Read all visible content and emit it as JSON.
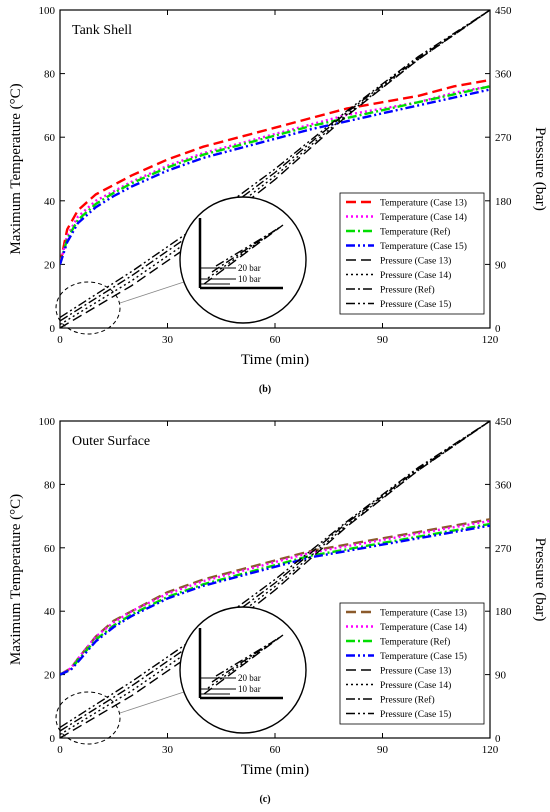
{
  "chart_data": [
    {
      "type": "line",
      "panel_title": "Tank Shell",
      "caption": "(b)",
      "xlabel": "Time (min)",
      "ylabel": "Maximum Temperature (°C)",
      "y2label": "Pressure (bar)",
      "xlim": [
        0,
        120
      ],
      "ylim": [
        0,
        100
      ],
      "y2lim": [
        0,
        450
      ],
      "xticks": [
        "0",
        "30",
        "60",
        "90",
        "120"
      ],
      "yticks": [
        "0",
        "20",
        "40",
        "60",
        "80",
        "100"
      ],
      "y2ticks": [
        "0",
        "90",
        "180",
        "270",
        "360",
        "450"
      ],
      "grid": false,
      "legend_position": "bottom-right",
      "inset_labels": [
        "20 bar",
        "10 bar"
      ],
      "series": [
        {
          "name": "Temperature (Case 13)",
          "axis": "left",
          "color": "#ff0000",
          "dash": "dash",
          "x": [
            0,
            2,
            5,
            10,
            15,
            20,
            30,
            40,
            50,
            60,
            70,
            80,
            90,
            100,
            110,
            120
          ],
          "y": [
            20,
            31,
            37,
            42,
            45,
            48,
            53,
            57,
            60,
            63,
            66,
            69,
            71,
            73,
            76,
            78
          ]
        },
        {
          "name": "Temperature (Case 14)",
          "axis": "left",
          "color": "#ff00ff",
          "dash": "dot",
          "x": [
            0,
            2,
            5,
            10,
            15,
            20,
            30,
            40,
            50,
            60,
            70,
            80,
            90,
            100,
            110,
            120
          ],
          "y": [
            20,
            29,
            35,
            40,
            43,
            46,
            51,
            55,
            58,
            61,
            64,
            67,
            69,
            71,
            74,
            76
          ]
        },
        {
          "name": "Temperature (Ref)",
          "axis": "left",
          "color": "#00dd00",
          "dash": "dashdot",
          "x": [
            0,
            2,
            5,
            10,
            15,
            20,
            30,
            40,
            50,
            60,
            70,
            80,
            90,
            100,
            110,
            120
          ],
          "y": [
            20,
            28,
            34,
            39,
            42.5,
            45.5,
            50.5,
            54.5,
            57.5,
            60.5,
            63.5,
            66,
            68.5,
            71,
            73.5,
            76
          ]
        },
        {
          "name": "Temperature (Case 15)",
          "axis": "left",
          "color": "#0000ff",
          "dash": "dashdotdot",
          "x": [
            0,
            2,
            5,
            10,
            15,
            20,
            30,
            40,
            50,
            60,
            70,
            80,
            90,
            100,
            110,
            120
          ],
          "y": [
            20,
            27,
            33,
            38,
            41.5,
            44.5,
            49.5,
            53.5,
            56.5,
            59.5,
            62.5,
            65,
            67.5,
            70,
            72.5,
            75
          ]
        },
        {
          "name": "Pressure (Case 13)",
          "axis": "right",
          "color": "#000000",
          "dash": "dash",
          "x": [
            0,
            20,
            40,
            60,
            80,
            100,
            120
          ],
          "y": [
            0,
            60,
            130,
            210,
            300,
            380,
            450
          ]
        },
        {
          "name": "Pressure (Case 14)",
          "axis": "right",
          "color": "#000000",
          "dash": "dot",
          "x": [
            0,
            20,
            40,
            60,
            80,
            100,
            120
          ],
          "y": [
            5,
            67,
            137,
            215,
            302,
            380,
            450
          ]
        },
        {
          "name": "Pressure (Ref)",
          "axis": "right",
          "color": "#000000",
          "dash": "dashdot",
          "x": [
            0,
            20,
            40,
            60,
            80,
            100,
            120
          ],
          "y": [
            10,
            74,
            144,
            220,
            305,
            382,
            450
          ]
        },
        {
          "name": "Pressure (Case 15)",
          "axis": "right",
          "color": "#000000",
          "dash": "dashdotdot",
          "x": [
            0,
            20,
            40,
            60,
            80,
            100,
            120
          ],
          "y": [
            15,
            80,
            150,
            225,
            307,
            384,
            450
          ]
        }
      ]
    },
    {
      "type": "line",
      "panel_title": "Outer Surface",
      "caption": "(c)",
      "xlabel": "Time (min)",
      "ylabel": "Maximum Temperature (°C)",
      "y2label": "Pressure (bar)",
      "xlim": [
        0,
        120
      ],
      "ylim": [
        0,
        100
      ],
      "y2lim": [
        0,
        450
      ],
      "xticks": [
        "0",
        "30",
        "60",
        "90",
        "120"
      ],
      "yticks": [
        "0",
        "20",
        "40",
        "60",
        "80",
        "100"
      ],
      "y2ticks": [
        "0",
        "90",
        "180",
        "270",
        "360",
        "450"
      ],
      "grid": false,
      "legend_position": "bottom-right",
      "inset_labels": [
        "20 bar",
        "10 bar"
      ],
      "series": [
        {
          "name": "Temperature (Case 13)",
          "axis": "left",
          "color": "#8b5a2b",
          "dash": "dash",
          "x": [
            0,
            3,
            5,
            10,
            15,
            20,
            30,
            40,
            50,
            60,
            70,
            80,
            90,
            100,
            110,
            120
          ],
          "y": [
            20,
            22,
            25,
            32,
            37,
            40,
            46,
            50,
            53,
            56,
            59,
            61,
            63,
            65,
            67,
            69
          ]
        },
        {
          "name": "Temperature (Case 14)",
          "axis": "left",
          "color": "#ff00ff",
          "dash": "dot",
          "x": [
            0,
            3,
            5,
            10,
            15,
            20,
            30,
            40,
            50,
            60,
            70,
            80,
            90,
            100,
            110,
            120
          ],
          "y": [
            20,
            22,
            25,
            32,
            36.5,
            40,
            45.5,
            49.5,
            52.5,
            55.5,
            58.5,
            60.5,
            62.5,
            64.5,
            66.5,
            68.5
          ]
        },
        {
          "name": "Temperature (Ref)",
          "axis": "left",
          "color": "#00dd00",
          "dash": "dashdot",
          "x": [
            0,
            3,
            5,
            10,
            15,
            20,
            30,
            40,
            50,
            60,
            70,
            80,
            90,
            100,
            110,
            120
          ],
          "y": [
            20,
            21.5,
            24.5,
            31,
            35.5,
            39,
            44.5,
            48.5,
            51.5,
            54.5,
            57.5,
            59.5,
            61.5,
            63.5,
            65.5,
            67.5
          ]
        },
        {
          "name": "Temperature (Case 15)",
          "axis": "left",
          "color": "#0000ff",
          "dash": "dashdotdot",
          "x": [
            0,
            3,
            5,
            10,
            15,
            20,
            30,
            40,
            50,
            60,
            70,
            80,
            90,
            100,
            110,
            120
          ],
          "y": [
            20,
            21.5,
            24,
            30.5,
            35,
            38.5,
            44,
            48,
            51,
            54,
            57,
            59,
            61,
            63,
            65,
            67
          ]
        },
        {
          "name": "Pressure (Case 13)",
          "axis": "right",
          "color": "#000000",
          "dash": "dash",
          "x": [
            0,
            20,
            40,
            60,
            80,
            100,
            120
          ],
          "y": [
            0,
            60,
            130,
            210,
            300,
            380,
            450
          ]
        },
        {
          "name": "Pressure (Case 14)",
          "axis": "right",
          "color": "#000000",
          "dash": "dot",
          "x": [
            0,
            20,
            40,
            60,
            80,
            100,
            120
          ],
          "y": [
            5,
            67,
            137,
            215,
            302,
            380,
            450
          ]
        },
        {
          "name": "Pressure (Ref)",
          "axis": "right",
          "color": "#000000",
          "dash": "dashdot",
          "x": [
            0,
            20,
            40,
            60,
            80,
            100,
            120
          ],
          "y": [
            10,
            74,
            144,
            220,
            305,
            382,
            450
          ]
        },
        {
          "name": "Pressure (Case 15)",
          "axis": "right",
          "color": "#000000",
          "dash": "dashdotdot",
          "x": [
            0,
            20,
            40,
            60,
            80,
            100,
            120
          ],
          "y": [
            15,
            80,
            150,
            225,
            307,
            384,
            450
          ]
        }
      ]
    }
  ]
}
